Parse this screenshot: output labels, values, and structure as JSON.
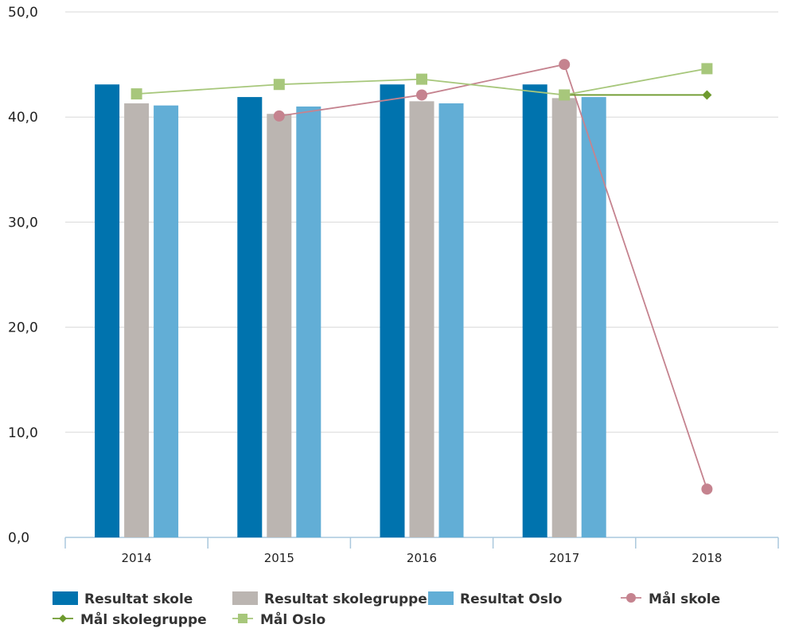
{
  "chart_data": {
    "type": "bar",
    "categories": [
      "2014",
      "2015",
      "2016",
      "2017",
      "2018"
    ],
    "ylim": [
      0,
      50
    ],
    "yticks": [
      0,
      10,
      20,
      30,
      40,
      50
    ],
    "ytick_labels": [
      "0,0",
      "10,0",
      "20,0",
      "30,0",
      "40,0",
      "50,0"
    ],
    "grid": true,
    "legend_position": "bottom-left",
    "bar_series": [
      {
        "name": "Resultat skole",
        "color": "#0073ae",
        "values": [
          43.1,
          41.9,
          43.1,
          43.1,
          null
        ]
      },
      {
        "name": "Resultat skolegruppe",
        "color": "#bbb5b1",
        "values": [
          41.3,
          40.3,
          41.5,
          41.8,
          null
        ]
      },
      {
        "name": "Resultat Oslo",
        "color": "#62aed6",
        "values": [
          41.1,
          41.0,
          41.3,
          41.9,
          null
        ]
      }
    ],
    "line_series": [
      {
        "name": "Mål skole",
        "color": "#c5838f",
        "marker": "circle",
        "values": [
          null,
          40.1,
          42.1,
          45.0,
          4.6
        ]
      },
      {
        "name": "Mål skolegruppe",
        "color": "#6e9a2e",
        "marker": "diamond",
        "values": [
          null,
          null,
          null,
          42.1,
          42.1
        ]
      },
      {
        "name": "Mål Oslo",
        "color": "#a7c77b",
        "marker": "square",
        "values": [
          42.2,
          43.1,
          43.6,
          42.1,
          44.6
        ]
      }
    ]
  }
}
